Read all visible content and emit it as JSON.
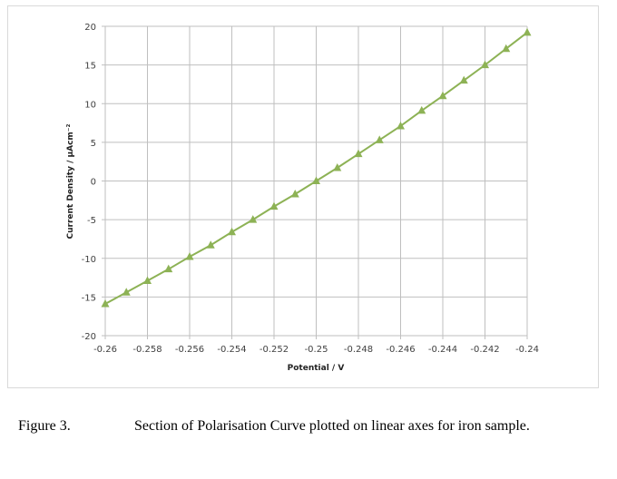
{
  "chart_data": {
    "type": "line",
    "xlabel": "Potential / V",
    "ylabel": "Current Density / µAcm⁻²",
    "xlim": [
      -0.26,
      -0.24
    ],
    "ylim": [
      -20,
      20
    ],
    "xticks": [
      -0.26,
      -0.258,
      -0.256,
      -0.254,
      -0.252,
      -0.25,
      -0.248,
      -0.246,
      -0.244,
      -0.242,
      -0.24
    ],
    "xtick_labels": [
      "-0.26",
      "-0.258",
      "-0.256",
      "-0.254",
      "-0.252",
      "-0.25",
      "-0.248",
      "-0.246",
      "-0.244",
      "-0.242",
      "-0.24"
    ],
    "yticks": [
      -20,
      -15,
      -10,
      -5,
      0,
      5,
      10,
      15,
      20
    ],
    "ytick_labels": [
      "-20",
      "-15",
      "-10",
      "-5",
      "0",
      "5",
      "10",
      "15",
      "20"
    ],
    "grid": true,
    "marker": "triangle",
    "series_color": "#8db255",
    "series": [
      {
        "x": [
          -0.26,
          -0.259,
          -0.258,
          -0.257,
          -0.256,
          -0.255,
          -0.254,
          -0.253,
          -0.252,
          -0.251,
          -0.25,
          -0.249,
          -0.248,
          -0.247,
          -0.246,
          -0.245,
          -0.244,
          -0.243,
          -0.242,
          -0.241,
          -0.24
        ],
        "y": [
          -15.9,
          -14.4,
          -12.9,
          -11.4,
          -9.8,
          -8.3,
          -6.6,
          -5.0,
          -3.3,
          -1.7,
          0.0,
          1.7,
          3.5,
          5.3,
          7.1,
          9.1,
          11.0,
          13.0,
          15.0,
          17.1,
          19.2
        ]
      }
    ]
  },
  "caption": {
    "label": "Figure 3.",
    "text": "Section of Polarisation Curve plotted on linear axes for iron sample."
  }
}
